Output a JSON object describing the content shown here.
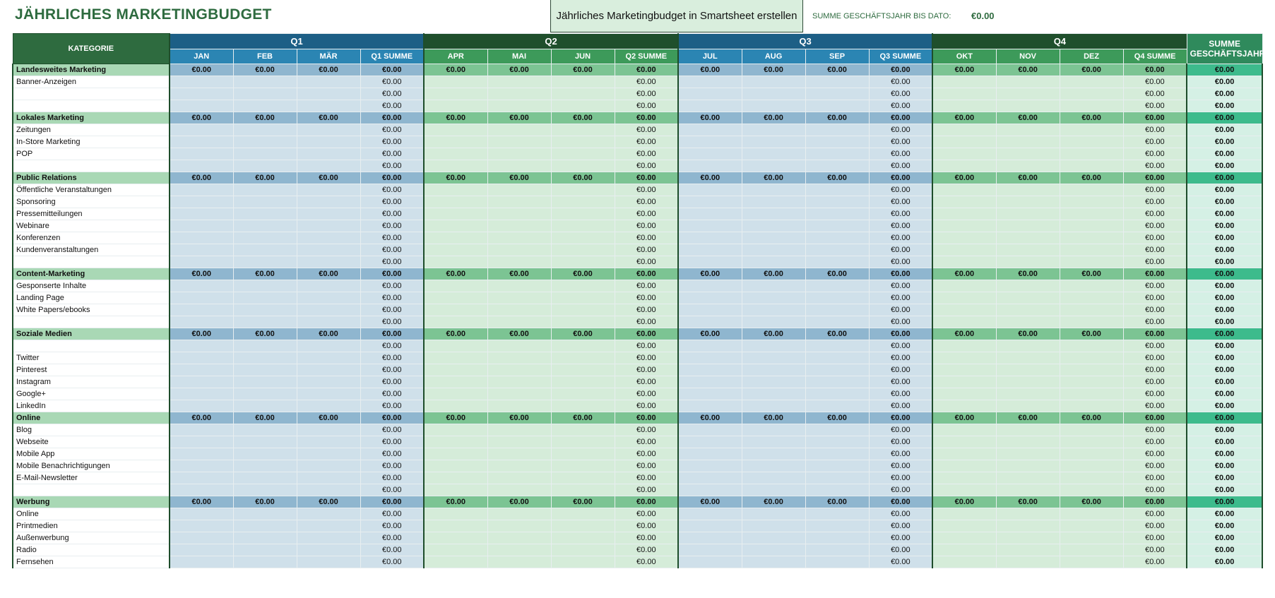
{
  "header": {
    "title": "JÄHRLICHES MARKETINGBUDGET",
    "button": "Jährliches Marketingbudget in Smartsheet erstellen",
    "total_label": "SUMME GESCHÄFTSJAHR BIS DATO:",
    "total_value": "€0.00"
  },
  "table": {
    "category_header": "KATEGORIE",
    "quarters": [
      "Q1",
      "Q2",
      "Q3",
      "Q4"
    ],
    "columns": [
      "JAN",
      "FEB",
      "MÄR",
      "Q1 SUMME",
      "APR",
      "MAI",
      "JUN",
      "Q2 SUMME",
      "JUL",
      "AUG",
      "SEP",
      "Q3 SUMME",
      "OKT",
      "NOV",
      "DEZ",
      "Q4 SUMME"
    ],
    "total_header": "SUMME GESCHÄFTSJAHR",
    "rows": [
      [
        "Landesweites Marketing",
        "€0.00",
        "€0.00",
        "€0.00",
        "€0.00",
        "€0.00",
        "€0.00",
        "€0.00",
        "€0.00",
        "€0.00",
        "€0.00",
        "€0.00",
        "€0.00",
        "€0.00",
        "€0.00",
        "€0.00",
        "€0.00",
        "€0.00"
      ],
      [
        "Banner-Anzeigen",
        null,
        null,
        null,
        "€0.00",
        null,
        null,
        null,
        "€0.00",
        null,
        null,
        null,
        "€0.00",
        null,
        null,
        null,
        "€0.00",
        "€0.00"
      ],
      [
        null,
        null,
        null,
        null,
        "€0.00",
        null,
        null,
        null,
        "€0.00",
        null,
        null,
        null,
        "€0.00",
        null,
        null,
        null,
        "€0.00",
        "€0.00"
      ],
      [
        null,
        null,
        null,
        null,
        "€0.00",
        null,
        null,
        null,
        "€0.00",
        null,
        null,
        null,
        "€0.00",
        null,
        null,
        null,
        "€0.00",
        "€0.00"
      ],
      [
        "Lokales Marketing",
        "€0.00",
        "€0.00",
        "€0.00",
        "€0.00",
        "€0.00",
        "€0.00",
        "€0.00",
        "€0.00",
        "€0.00",
        "€0.00",
        "€0.00",
        "€0.00",
        "€0.00",
        "€0.00",
        "€0.00",
        "€0.00",
        "€0.00"
      ],
      [
        "Zeitungen",
        null,
        null,
        null,
        "€0.00",
        null,
        null,
        null,
        "€0.00",
        null,
        null,
        null,
        "€0.00",
        null,
        null,
        null,
        "€0.00",
        "€0.00"
      ],
      [
        "In-Store Marketing",
        null,
        null,
        null,
        "€0.00",
        null,
        null,
        null,
        "€0.00",
        null,
        null,
        null,
        "€0.00",
        null,
        null,
        null,
        "€0.00",
        "€0.00"
      ],
      [
        "POP",
        null,
        null,
        null,
        "€0.00",
        null,
        null,
        null,
        "€0.00",
        null,
        null,
        null,
        "€0.00",
        null,
        null,
        null,
        "€0.00",
        "€0.00"
      ],
      [
        null,
        null,
        null,
        null,
        "€0.00",
        null,
        null,
        null,
        "€0.00",
        null,
        null,
        null,
        "€0.00",
        null,
        null,
        null,
        "€0.00",
        "€0.00"
      ],
      [
        "Public Relations",
        "€0.00",
        "€0.00",
        "€0.00",
        "€0.00",
        "€0.00",
        "€0.00",
        "€0.00",
        "€0.00",
        "€0.00",
        "€0.00",
        "€0.00",
        "€0.00",
        "€0.00",
        "€0.00",
        "€0.00",
        "€0.00",
        "€0.00"
      ],
      [
        "Öffentliche Veranstaltungen",
        null,
        null,
        null,
        "€0.00",
        null,
        null,
        null,
        "€0.00",
        null,
        null,
        null,
        "€0.00",
        null,
        null,
        null,
        "€0.00",
        "€0.00"
      ],
      [
        "Sponsoring",
        null,
        null,
        null,
        "€0.00",
        null,
        null,
        null,
        "€0.00",
        null,
        null,
        null,
        "€0.00",
        null,
        null,
        null,
        "€0.00",
        "€0.00"
      ],
      [
        "Pressemitteilungen",
        null,
        null,
        null,
        "€0.00",
        null,
        null,
        null,
        "€0.00",
        null,
        null,
        null,
        "€0.00",
        null,
        null,
        null,
        "€0.00",
        "€0.00"
      ],
      [
        "Webinare",
        null,
        null,
        null,
        "€0.00",
        null,
        null,
        null,
        "€0.00",
        null,
        null,
        null,
        "€0.00",
        null,
        null,
        null,
        "€0.00",
        "€0.00"
      ],
      [
        "Konferenzen",
        null,
        null,
        null,
        "€0.00",
        null,
        null,
        null,
        "€0.00",
        null,
        null,
        null,
        "€0.00",
        null,
        null,
        null,
        "€0.00",
        "€0.00"
      ],
      [
        "Kundenveranstaltungen",
        null,
        null,
        null,
        "€0.00",
        null,
        null,
        null,
        "€0.00",
        null,
        null,
        null,
        "€0.00",
        null,
        null,
        null,
        "€0.00",
        "€0.00"
      ],
      [
        null,
        null,
        null,
        null,
        "€0.00",
        null,
        null,
        null,
        "€0.00",
        null,
        null,
        null,
        "€0.00",
        null,
        null,
        null,
        "€0.00",
        "€0.00"
      ],
      [
        "Content-Marketing",
        "€0.00",
        "€0.00",
        "€0.00",
        "€0.00",
        "€0.00",
        "€0.00",
        "€0.00",
        "€0.00",
        "€0.00",
        "€0.00",
        "€0.00",
        "€0.00",
        "€0.00",
        "€0.00",
        "€0.00",
        "€0.00",
        "€0.00"
      ],
      [
        "Gesponserte Inhalte",
        null,
        null,
        null,
        "€0.00",
        null,
        null,
        null,
        "€0.00",
        null,
        null,
        null,
        "€0.00",
        null,
        null,
        null,
        "€0.00",
        "€0.00"
      ],
      [
        "Landing Page",
        null,
        null,
        null,
        "€0.00",
        null,
        null,
        null,
        "€0.00",
        null,
        null,
        null,
        "€0.00",
        null,
        null,
        null,
        "€0.00",
        "€0.00"
      ],
      [
        "White Papers/ebooks",
        null,
        null,
        null,
        "€0.00",
        null,
        null,
        null,
        "€0.00",
        null,
        null,
        null,
        "€0.00",
        null,
        null,
        null,
        "€0.00",
        "€0.00"
      ],
      [
        null,
        null,
        null,
        null,
        "€0.00",
        null,
        null,
        null,
        "€0.00",
        null,
        null,
        null,
        "€0.00",
        null,
        null,
        null,
        "€0.00",
        "€0.00"
      ],
      [
        "Soziale Medien",
        "€0.00",
        "€0.00",
        "€0.00",
        "€0.00",
        "€0.00",
        "€0.00",
        "€0.00",
        "€0.00",
        "€0.00",
        "€0.00",
        "€0.00",
        "€0.00",
        "€0.00",
        "€0.00",
        "€0.00",
        "€0.00",
        "€0.00"
      ],
      [
        null,
        null,
        null,
        null,
        "€0.00",
        null,
        null,
        null,
        "€0.00",
        null,
        null,
        null,
        "€0.00",
        null,
        null,
        null,
        "€0.00",
        "€0.00"
      ],
      [
        "Twitter",
        null,
        null,
        null,
        "€0.00",
        null,
        null,
        null,
        "€0.00",
        null,
        null,
        null,
        "€0.00",
        null,
        null,
        null,
        "€0.00",
        "€0.00"
      ],
      [
        "Pinterest",
        null,
        null,
        null,
        "€0.00",
        null,
        null,
        null,
        "€0.00",
        null,
        null,
        null,
        "€0.00",
        null,
        null,
        null,
        "€0.00",
        "€0.00"
      ],
      [
        "Instagram",
        null,
        null,
        null,
        "€0.00",
        null,
        null,
        null,
        "€0.00",
        null,
        null,
        null,
        "€0.00",
        null,
        null,
        null,
        "€0.00",
        "€0.00"
      ],
      [
        "Google+",
        null,
        null,
        null,
        "€0.00",
        null,
        null,
        null,
        "€0.00",
        null,
        null,
        null,
        "€0.00",
        null,
        null,
        null,
        "€0.00",
        "€0.00"
      ],
      [
        "LinkedIn",
        null,
        null,
        null,
        "€0.00",
        null,
        null,
        null,
        "€0.00",
        null,
        null,
        null,
        "€0.00",
        null,
        null,
        null,
        "€0.00",
        "€0.00"
      ],
      [
        "Online",
        "€0.00",
        "€0.00",
        "€0.00",
        "€0.00",
        "€0.00",
        "€0.00",
        "€0.00",
        "€0.00",
        "€0.00",
        "€0.00",
        "€0.00",
        "€0.00",
        "€0.00",
        "€0.00",
        "€0.00",
        "€0.00",
        "€0.00"
      ],
      [
        "Blog",
        null,
        null,
        null,
        "€0.00",
        null,
        null,
        null,
        "€0.00",
        null,
        null,
        null,
        "€0.00",
        null,
        null,
        null,
        "€0.00",
        "€0.00"
      ],
      [
        "Webseite",
        null,
        null,
        null,
        "€0.00",
        null,
        null,
        null,
        "€0.00",
        null,
        null,
        null,
        "€0.00",
        null,
        null,
        null,
        "€0.00",
        "€0.00"
      ],
      [
        "Mobile App",
        null,
        null,
        null,
        "€0.00",
        null,
        null,
        null,
        "€0.00",
        null,
        null,
        null,
        "€0.00",
        null,
        null,
        null,
        "€0.00",
        "€0.00"
      ],
      [
        "Mobile Benachrichtigungen",
        null,
        null,
        null,
        "€0.00",
        null,
        null,
        null,
        "€0.00",
        null,
        null,
        null,
        "€0.00",
        null,
        null,
        null,
        "€0.00",
        "€0.00"
      ],
      [
        "E-Mail-Newsletter",
        null,
        null,
        null,
        "€0.00",
        null,
        null,
        null,
        "€0.00",
        null,
        null,
        null,
        "€0.00",
        null,
        null,
        null,
        "€0.00",
        "€0.00"
      ],
      [
        null,
        null,
        null,
        null,
        "€0.00",
        null,
        null,
        null,
        "€0.00",
        null,
        null,
        null,
        "€0.00",
        null,
        null,
        null,
        "€0.00",
        "€0.00"
      ],
      [
        "Werbung",
        "€0.00",
        "€0.00",
        "€0.00",
        "€0.00",
        "€0.00",
        "€0.00",
        "€0.00",
        "€0.00",
        "€0.00",
        "€0.00",
        "€0.00",
        "€0.00",
        "€0.00",
        "€0.00",
        "€0.00",
        "€0.00",
        "€0.00"
      ],
      [
        "Online",
        null,
        null,
        null,
        "€0.00",
        null,
        null,
        null,
        "€0.00",
        null,
        null,
        null,
        "€0.00",
        null,
        null,
        null,
        "€0.00",
        "€0.00"
      ],
      [
        "Printmedien",
        null,
        null,
        null,
        "€0.00",
        null,
        null,
        null,
        "€0.00",
        null,
        null,
        null,
        "€0.00",
        null,
        null,
        null,
        "€0.00",
        "€0.00"
      ],
      [
        "Außenwerbung",
        null,
        null,
        null,
        "€0.00",
        null,
        null,
        null,
        "€0.00",
        null,
        null,
        null,
        "€0.00",
        null,
        null,
        null,
        "€0.00",
        "€0.00"
      ],
      [
        "Radio",
        null,
        null,
        null,
        "€0.00",
        null,
        null,
        null,
        "€0.00",
        null,
        null,
        null,
        "€0.00",
        null,
        null,
        null,
        "€0.00",
        "€0.00"
      ],
      [
        "Fernsehen",
        null,
        null,
        null,
        "€0.00",
        null,
        null,
        null,
        "€0.00",
        null,
        null,
        null,
        "€0.00",
        null,
        null,
        null,
        "€0.00",
        "€0.00"
      ]
    ]
  }
}
